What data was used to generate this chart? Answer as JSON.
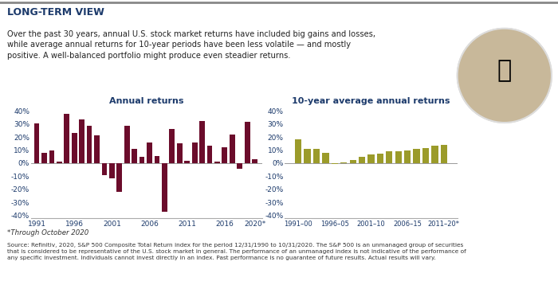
{
  "title": "LONG-TERM VIEW",
  "subtitle": "Over the past 30 years, annual U.S. stock market returns have included big gains and losses,\nwhile average annual returns for 10-year periods have been less volatile — and mostly\npositive. A well-balanced portfolio might produce even steadier returns.",
  "chart1_title": "Annual returns",
  "chart2_title": "10-year average annual returns",
  "annual_years": [
    1991,
    1992,
    1993,
    1994,
    1995,
    1996,
    1997,
    1998,
    1999,
    2000,
    2001,
    2002,
    2003,
    2004,
    2005,
    2006,
    2007,
    2008,
    2009,
    2010,
    2011,
    2012,
    2013,
    2014,
    2015,
    2016,
    2017,
    2018,
    2019,
    2020
  ],
  "annual_values": [
    0.304,
    0.076,
    0.1,
    0.012,
    0.375,
    0.23,
    0.334,
    0.286,
    0.21,
    -0.091,
    -0.119,
    -0.221,
    0.287,
    0.108,
    0.049,
    0.158,
    0.055,
    -0.37,
    0.264,
    0.151,
    0.021,
    0.16,
    0.324,
    0.136,
    0.014,
    0.12,
    0.218,
    -0.044,
    0.314,
    0.029
  ],
  "decade_values": [
    0.183,
    0.112,
    0.108,
    0.077,
    -0.008,
    0.005,
    0.023,
    0.05,
    0.065,
    0.075,
    0.092,
    0.09,
    0.098,
    0.11,
    0.115,
    0.132,
    0.14
  ],
  "decade_end_years": [
    2000,
    2001,
    2002,
    2003,
    2004,
    2005,
    2006,
    2007,
    2008,
    2009,
    2010,
    2011,
    2012,
    2013,
    2014,
    2015,
    2016
  ],
  "bar_color_annual": "#6B0C2B",
  "bar_color_decadal": "#9B9B2A",
  "ylim": [
    -0.42,
    0.42
  ],
  "yticks": [
    -0.4,
    -0.3,
    -0.2,
    -0.1,
    0.0,
    0.1,
    0.2,
    0.3,
    0.4
  ],
  "footnote1": "*Through October 2020",
  "footnote2": "Source: Refinitiv, 2020, S&P 500 Composite Total Return index for the period 12/31/1990 to 10/31/2020. The S&P 500 is an unmanaged group of securities\nthat is considered to be representative of the U.S. stock market in general. The performance of an unmanaged index is not indicative of the performance of\nany specific investment. Individuals cannot invest directly in an index. Past performance is no guarantee of future results. Actual results will vary.",
  "bg_color": "#FFFFFF",
  "text_color": "#1C3A6B",
  "subtitle_color": "#222222",
  "footnote_color": "#333333",
  "axis_color": "#AAAAAA",
  "zero_line_color": "#888888",
  "top_border_color": "#888888",
  "xtick_labels_annual": [
    "1991",
    "1996",
    "2001",
    "2006",
    "2011",
    "2016",
    "2020*"
  ],
  "xtick_pos_annual": [
    1991,
    1996,
    2001,
    2006,
    2011,
    2016,
    2020
  ],
  "xtick_labels_decade": [
    "1991–00",
    "1996–05",
    "2001–10",
    "2006–15",
    "2011–20*"
  ],
  "xtick_pos_decade": [
    2000,
    2005,
    2010,
    2015,
    2020
  ]
}
